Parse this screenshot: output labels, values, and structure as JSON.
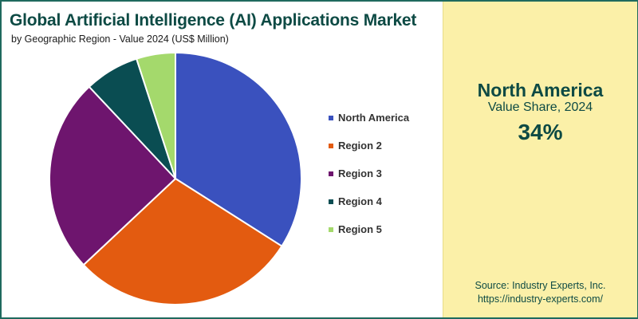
{
  "header": {
    "title": "Global Artificial Intelligence (AI) Applications Market",
    "subtitle": "by Geographic Region - Value 2024 (US$ Million)"
  },
  "chart_data": {
    "type": "pie",
    "title": "Global Artificial Intelligence (AI) Applications Market",
    "subtitle": "by Geographic Region - Value 2024 (US$ Million)",
    "legend_position": "right",
    "categories": [
      "North America",
      "Region 2",
      "Region 3",
      "Region 4",
      "Region 5"
    ],
    "values": [
      34,
      29,
      25,
      7,
      5
    ],
    "colors": [
      "#3a51be",
      "#e35b10",
      "#6e156e",
      "#0a4d52",
      "#a4d96c"
    ],
    "start_angle_deg": 0,
    "direction": "clockwise"
  },
  "panel": {
    "region": "North America",
    "share_label": "Value Share, 2024",
    "share_value": "34%",
    "source_line1": "Source: Industry Experts, Inc.",
    "source_line2": "https://industry-experts.com/"
  }
}
